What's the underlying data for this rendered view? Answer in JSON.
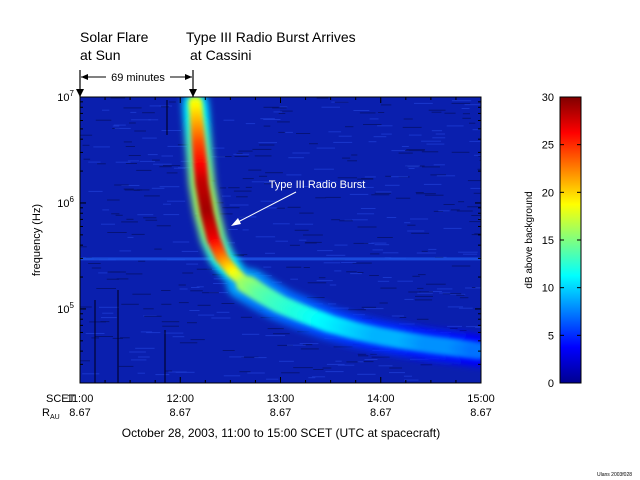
{
  "chart_data": {
    "type": "heatmap",
    "title": "",
    "xlabel": "October 28, 2003, 11:00 to 15:00 SCET (UTC at spacecraft)",
    "ylabel": "frequency (Hz)",
    "y_scale": "log",
    "xlim": [
      "11:00",
      "15:00"
    ],
    "ylim_hz": [
      20000,
      10000000
    ],
    "x_ticks": [
      "11:00",
      "12:00",
      "13:00",
      "14:00",
      "15:00"
    ],
    "y_ticks": [
      {
        "base": "10",
        "exp": "5",
        "value": 100000
      },
      {
        "base": "10",
        "exp": "6",
        "value": 1000000
      },
      {
        "base": "10",
        "exp": "7",
        "value": 10000000
      }
    ],
    "row_labels": {
      "scet": "SCET",
      "rau_main": "R",
      "rau_sub": "AU"
    },
    "rau_values": [
      "8.67",
      "8.67",
      "8.67",
      "8.67",
      "8.67"
    ],
    "colorbar": {
      "label": "dB above background",
      "min": 0,
      "max": 30,
      "ticks": [
        "0",
        "5",
        "10",
        "15",
        "20",
        "25",
        "30"
      ]
    },
    "annotations": {
      "flare_time": "11:00",
      "flare_label_1": "Solar Flare",
      "flare_label_2": "at Sun",
      "arrival_time": "12:09",
      "arrival_label_1": "Type III Radio Burst Arrives",
      "arrival_label_2": "at Cassini",
      "delay_label": "69 minutes",
      "burst_label": "Type III Radio Burst"
    },
    "burst_trace": {
      "time": [
        "12:09",
        "12:11",
        "12:13",
        "12:16",
        "12:20",
        "12:25",
        "12:32",
        "12:40",
        "12:50",
        "13:00",
        "13:15",
        "13:30",
        "13:45",
        "14:00",
        "14:15",
        "14:30",
        "14:45",
        "15:00"
      ],
      "freq_hz": [
        9000000,
        3500000,
        1500000,
        800000,
        450000,
        300000,
        220000,
        170000,
        135000,
        110000,
        88000,
        72000,
        62000,
        55000,
        50000,
        46000,
        43000,
        40000
      ],
      "db": [
        18,
        24,
        28,
        29,
        27,
        23,
        19,
        16,
        14,
        13,
        12,
        11,
        10,
        9,
        9,
        8,
        8,
        7
      ]
    },
    "stamp": "Ulans 2003f028"
  }
}
